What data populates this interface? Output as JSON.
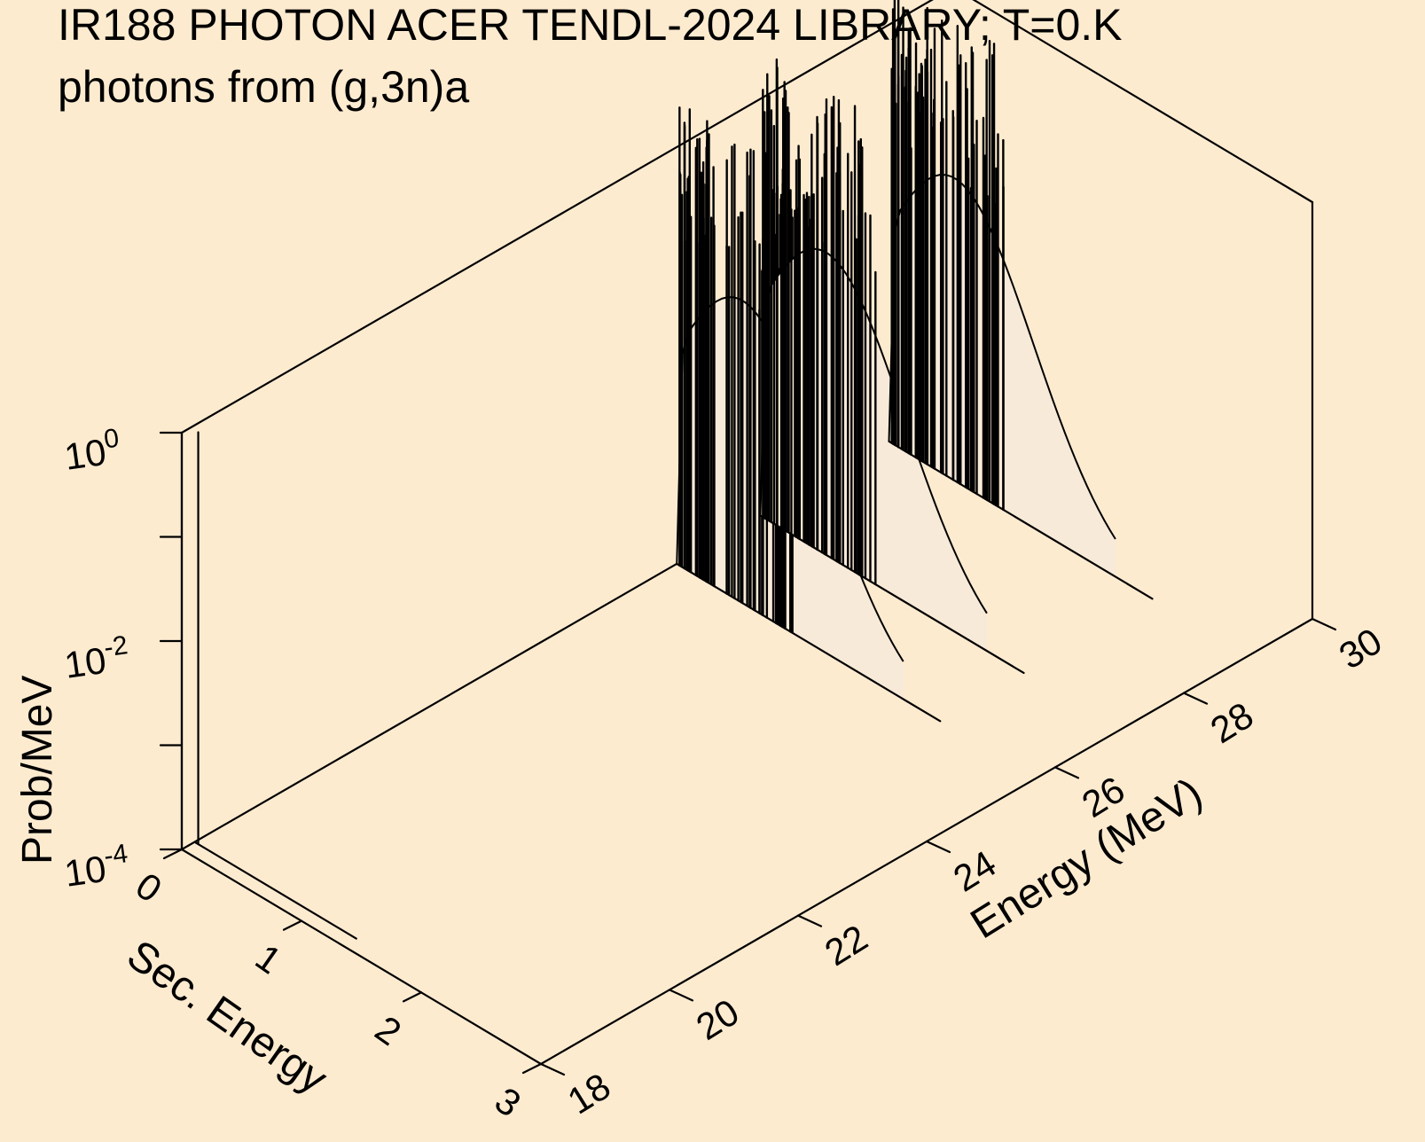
{
  "chart_data": {
    "type": "3d-waterfall",
    "title_lines": [
      "IR188 PHOTON ACER TENDL-2024 LIBRARY; T=0.K",
      "photons from (g,3n)a"
    ],
    "z_axis": {
      "label": "Prob/MeV",
      "scale": "log",
      "range": [
        0.0001,
        1
      ],
      "ticks": [
        {
          "base": "10",
          "exp": "0",
          "value": 1
        },
        {
          "base": "10",
          "exp": "-2",
          "value": 0.01
        },
        {
          "base": "10",
          "exp": "-4",
          "value": 0.0001
        }
      ]
    },
    "x_axis": {
      "label": "Sec. Energy",
      "range": [
        0,
        3
      ],
      "ticks": [
        "0",
        "1",
        "2",
        "3"
      ]
    },
    "y_axis": {
      "label": "Energy (MeV)",
      "range": [
        18,
        30
      ],
      "ticks": [
        "18",
        "20",
        "22",
        "24",
        "26",
        "28",
        "30"
      ]
    },
    "slices": [
      {
        "incident_energy": 18.2,
        "shape": "delta",
        "peak": 0.9,
        "x_end": 1.35
      },
      {
        "incident_energy": 25.7,
        "shape": "lines+continuum",
        "peak": 3.0,
        "x_end": 2.2
      },
      {
        "incident_energy": 27.0,
        "shape": "lines+continuum",
        "peak": 3.0,
        "x_end": 2.2
      },
      {
        "incident_energy": 29.0,
        "shape": "lines+continuum",
        "peak": 3.0,
        "x_end": 2.2
      }
    ],
    "colors": {
      "background": "#fdebd0",
      "fill": "#f8ead8",
      "line": "#000000"
    }
  }
}
